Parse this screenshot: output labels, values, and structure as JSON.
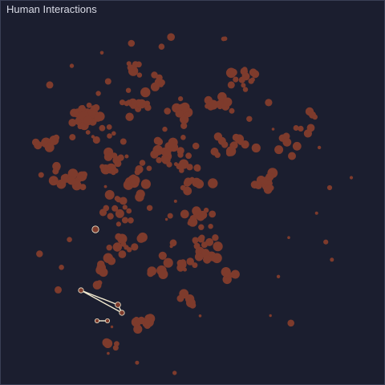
{
  "window": {
    "title": "Human Interactions"
  },
  "colors": {
    "background": "#1b1e2f",
    "node": "#7e3b2c",
    "highlight_edge": "#f2ead0",
    "title_text": "#d9dbe6"
  }
}
